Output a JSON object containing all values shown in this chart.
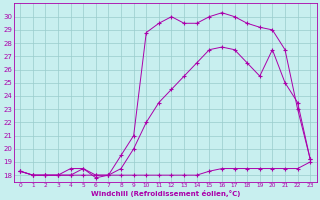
{
  "xlabel": "Windchill (Refroidissement éolien,°C)",
  "bg_color": "#c8efef",
  "line_color": "#aa00aa",
  "grid_color": "#99cccc",
  "xlim": [
    -0.5,
    23.5
  ],
  "ylim": [
    17.5,
    31.0
  ],
  "xticks": [
    0,
    1,
    2,
    3,
    4,
    5,
    6,
    7,
    8,
    9,
    10,
    11,
    12,
    13,
    14,
    15,
    16,
    17,
    18,
    19,
    20,
    21,
    22,
    23
  ],
  "yticks": [
    18,
    19,
    20,
    21,
    22,
    23,
    24,
    25,
    26,
    27,
    28,
    29,
    30
  ],
  "line1_x": [
    0,
    1,
    2,
    3,
    4,
    5,
    6,
    7,
    8,
    9,
    10,
    11,
    12,
    13,
    14,
    15,
    16,
    17,
    18,
    19,
    20,
    21,
    22,
    23
  ],
  "line1_y": [
    18.3,
    18.0,
    18.0,
    18.0,
    18.0,
    18.0,
    18.0,
    18.0,
    18.0,
    18.0,
    18.0,
    18.0,
    18.0,
    18.0,
    18.0,
    18.3,
    18.5,
    18.5,
    18.5,
    18.5,
    18.5,
    18.5,
    18.5,
    19.0
  ],
  "line2_x": [
    0,
    1,
    2,
    3,
    4,
    5,
    6,
    7,
    8,
    9,
    10,
    11,
    12,
    13,
    14,
    15,
    16,
    17,
    18,
    19,
    20,
    21,
    22,
    23
  ],
  "line2_y": [
    18.3,
    18.0,
    18.0,
    18.0,
    18.5,
    18.5,
    18.0,
    18.0,
    18.5,
    20.0,
    22.0,
    23.5,
    24.5,
    25.5,
    26.5,
    27.5,
    27.7,
    27.5,
    26.5,
    25.5,
    27.5,
    25.0,
    23.5,
    19.2
  ],
  "line3_x": [
    0,
    1,
    2,
    3,
    4,
    5,
    6,
    7,
    8,
    9,
    10,
    11,
    12,
    13,
    14,
    15,
    16,
    17,
    18,
    19,
    20,
    21,
    22,
    23
  ],
  "line3_y": [
    18.3,
    18.0,
    18.0,
    18.0,
    18.0,
    18.5,
    17.8,
    18.0,
    19.5,
    21.0,
    28.8,
    29.5,
    30.0,
    29.5,
    29.5,
    30.0,
    30.3,
    30.0,
    29.5,
    29.2,
    29.0,
    27.5,
    23.0,
    19.2
  ]
}
